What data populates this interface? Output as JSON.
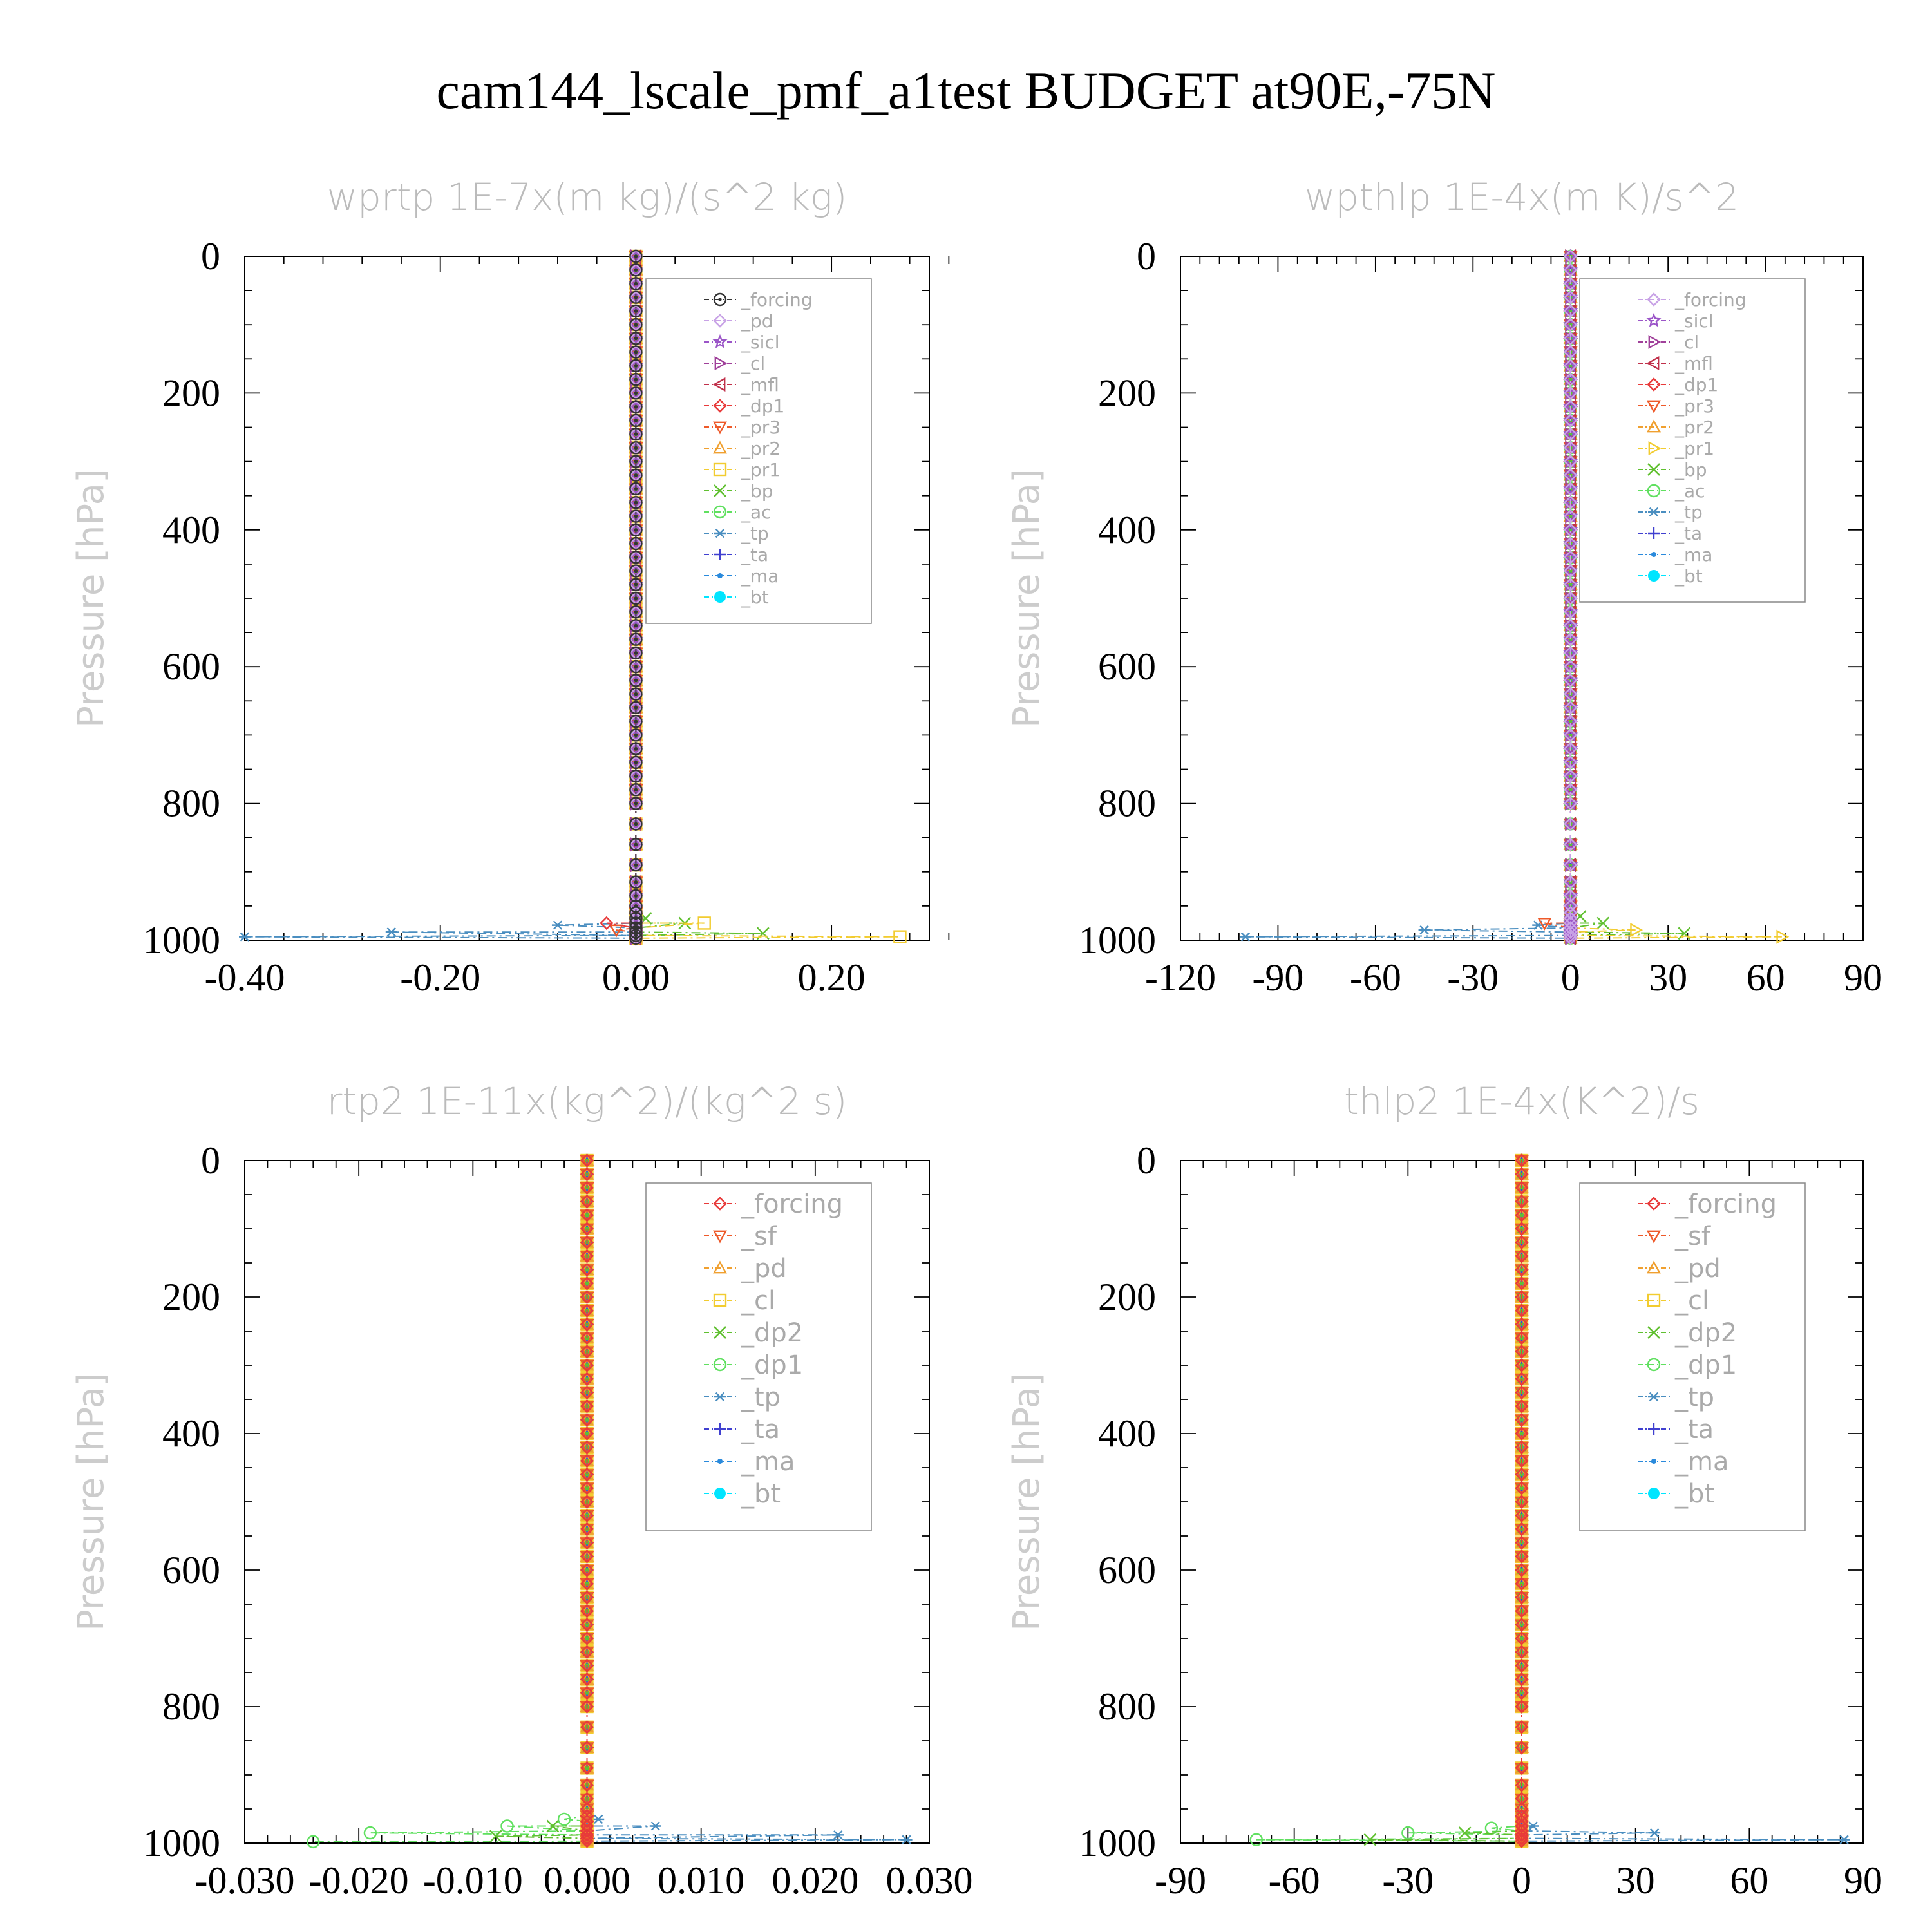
{
  "page_title": "cam144_lscale_pmf_a1test  BUDGET at90E,-75N",
  "colors": {
    "black": "#333333",
    "lavender": "#c8a2e6",
    "purple": "#9b55c8",
    "magenta": "#a0409a",
    "crimson": "#c0304a",
    "red": "#e83a3a",
    "orange_red": "#ee5a2a",
    "orange": "#f0a030",
    "yellow": "#f2cc30",
    "green": "#60c030",
    "light_green": "#60e060",
    "steel": "#4a8ec0",
    "blue": "#4040d0",
    "sky": "#2a8adc",
    "cyan": "#00e5ff"
  },
  "chart_data": [
    {
      "type": "line",
      "title": "wprtp   1E-7x(m kg)/(s^2 kg)",
      "ylabel": "Pressure [hPa]",
      "xlim": [
        -0.4,
        0.3
      ],
      "ylim": [
        1000,
        0
      ],
      "xticks": [
        -0.4,
        -0.2,
        0.0,
        0.2
      ],
      "xtick_labels": [
        "-0.40",
        "-0.20",
        "0.00",
        "0.20"
      ],
      "yticks": [
        0,
        200,
        400,
        600,
        800,
        1000
      ],
      "ytick_labels": [
        "0",
        "200",
        "400",
        "600",
        "800",
        "1000"
      ],
      "legend_position": "top-right",
      "series": [
        {
          "name": "_forcing",
          "color": "#333333",
          "marker": "circle-dot",
          "lowest": []
        },
        {
          "name": "_pd",
          "color": "#c8a2e6",
          "marker": "diamond",
          "lowest": []
        },
        {
          "name": "_sicl",
          "color": "#9b55c8",
          "marker": "star",
          "lowest": []
        },
        {
          "name": "_cl",
          "color": "#a0409a",
          "marker": "tri-right",
          "lowest": []
        },
        {
          "name": "_mfl",
          "color": "#c0304a",
          "marker": "tri-left",
          "lowest": []
        },
        {
          "name": "_dp1",
          "color": "#e83a3a",
          "marker": "diamond",
          "lowest": [
            [
              -0.03,
              975
            ],
            [
              0.0,
              995
            ]
          ]
        },
        {
          "name": "_pr3",
          "color": "#ee5a2a",
          "marker": "tri-down",
          "lowest": [
            [
              -0.02,
              985
            ],
            [
              0.0,
              998
            ]
          ]
        },
        {
          "name": "_pr2",
          "color": "#f0a030",
          "marker": "tri-up",
          "lowest": []
        },
        {
          "name": "_pr1",
          "color": "#f2cc30",
          "marker": "square",
          "lowest": [
            [
              0.07,
              975
            ],
            [
              0.27,
              995
            ]
          ]
        },
        {
          "name": "_bp",
          "color": "#60c030",
          "marker": "x",
          "lowest": [
            [
              0.01,
              968
            ],
            [
              0.05,
              975
            ],
            [
              0.13,
              990
            ]
          ]
        },
        {
          "name": "_ac",
          "color": "#60e060",
          "marker": "circle",
          "lowest": []
        },
        {
          "name": "_tp",
          "color": "#4a8ec0",
          "marker": "asterisk",
          "lowest": [
            [
              -0.08,
              978
            ],
            [
              -0.25,
              988
            ],
            [
              -0.4,
              995
            ]
          ]
        },
        {
          "name": "_ta",
          "color": "#4040d0",
          "marker": "plus",
          "lowest": []
        },
        {
          "name": "_ma",
          "color": "#2a8adc",
          "marker": "dot",
          "lowest": []
        },
        {
          "name": "_bt",
          "color": "#00e5ff",
          "marker": "filled-circle",
          "lowest": []
        }
      ]
    },
    {
      "type": "line",
      "title": "wpthlp   1E-4x(m K)/s^2",
      "ylabel": "Pressure [hPa]",
      "xlim": [
        -120,
        90
      ],
      "ylim": [
        1000,
        0
      ],
      "xticks": [
        -120,
        -90,
        -60,
        -30,
        0,
        30,
        60,
        90
      ],
      "xtick_labels": [
        "-120",
        "-90",
        "-60",
        "-30",
        "0",
        "30",
        "60",
        "90"
      ],
      "yticks": [
        0,
        200,
        400,
        600,
        800,
        1000
      ],
      "ytick_labels": [
        "0",
        "200",
        "400",
        "600",
        "800",
        "1000"
      ],
      "legend_position": "top-right",
      "series": [
        {
          "name": "_forcing",
          "color": "#c8a2e6",
          "marker": "diamond",
          "lowest": []
        },
        {
          "name": "_sicl",
          "color": "#9b55c8",
          "marker": "star",
          "lowest": []
        },
        {
          "name": "_cl",
          "color": "#a0409a",
          "marker": "tri-right",
          "lowest": []
        },
        {
          "name": "_mfl",
          "color": "#c0304a",
          "marker": "tri-left",
          "lowest": []
        },
        {
          "name": "_dp1",
          "color": "#e83a3a",
          "marker": "diamond",
          "lowest": []
        },
        {
          "name": "_pr3",
          "color": "#ee5a2a",
          "marker": "tri-down",
          "lowest": [
            [
              -8,
              975
            ],
            [
              0,
              995
            ]
          ]
        },
        {
          "name": "_pr2",
          "color": "#f0a030",
          "marker": "tri-up",
          "lowest": []
        },
        {
          "name": "_pr1",
          "color": "#f2cc30",
          "marker": "tri-right",
          "lowest": [
            [
              20,
              985
            ],
            [
              65,
              995
            ]
          ]
        },
        {
          "name": "_bp",
          "color": "#60c030",
          "marker": "x",
          "lowest": [
            [
              3,
              965
            ],
            [
              10,
              975
            ],
            [
              35,
              990
            ]
          ]
        },
        {
          "name": "_ac",
          "color": "#60e060",
          "marker": "circle",
          "lowest": []
        },
        {
          "name": "_tp",
          "color": "#4a8ec0",
          "marker": "asterisk",
          "lowest": [
            [
              -10,
              978
            ],
            [
              -45,
              985
            ],
            [
              -100,
              995
            ]
          ]
        },
        {
          "name": "_ta",
          "color": "#4040d0",
          "marker": "plus",
          "lowest": []
        },
        {
          "name": "_ma",
          "color": "#2a8adc",
          "marker": "dot",
          "lowest": []
        },
        {
          "name": "_bt",
          "color": "#00e5ff",
          "marker": "filled-circle",
          "lowest": []
        }
      ]
    },
    {
      "type": "line",
      "title": "rtp2   1E-11x(kg^2)/(kg^2 s)",
      "ylabel": "Pressure [hPa]",
      "xlim": [
        -0.03,
        0.03
      ],
      "ylim": [
        1000,
        0
      ],
      "xticks": [
        -0.03,
        -0.02,
        -0.01,
        0.0,
        0.01,
        0.02,
        0.03
      ],
      "xtick_labels": [
        "-0.030",
        "-0.020",
        "-0.010",
        "0.000",
        "0.010",
        "0.020",
        "0.030"
      ],
      "yticks": [
        0,
        200,
        400,
        600,
        800,
        1000
      ],
      "ytick_labels": [
        "0",
        "200",
        "400",
        "600",
        "800",
        "1000"
      ],
      "legend_position": "top-right",
      "series": [
        {
          "name": "_forcing",
          "color": "#e83a3a",
          "marker": "diamond",
          "lowest": []
        },
        {
          "name": "_sf",
          "color": "#ee5a2a",
          "marker": "tri-down",
          "lowest": []
        },
        {
          "name": "_pd",
          "color": "#f0a030",
          "marker": "tri-up",
          "lowest": []
        },
        {
          "name": "_cl",
          "color": "#f2cc30",
          "marker": "square",
          "lowest": []
        },
        {
          "name": "_dp2",
          "color": "#60c030",
          "marker": "x",
          "lowest": [
            [
              -0.003,
              975
            ],
            [
              -0.008,
              990
            ]
          ]
        },
        {
          "name": "_dp1",
          "color": "#60e060",
          "marker": "circle",
          "lowest": [
            [
              -0.002,
              965
            ],
            [
              -0.007,
              975
            ],
            [
              -0.019,
              985
            ],
            [
              -0.024,
              998
            ]
          ]
        },
        {
          "name": "_tp",
          "color": "#4a8ec0",
          "marker": "asterisk",
          "lowest": [
            [
              0.001,
              965
            ],
            [
              0.006,
              975
            ],
            [
              0.022,
              988
            ],
            [
              0.028,
              995
            ]
          ]
        },
        {
          "name": "_ta",
          "color": "#4040d0",
          "marker": "plus",
          "lowest": []
        },
        {
          "name": "_ma",
          "color": "#2a8adc",
          "marker": "dot",
          "lowest": []
        },
        {
          "name": "_bt",
          "color": "#00e5ff",
          "marker": "filled-circle",
          "lowest": []
        }
      ]
    },
    {
      "type": "line",
      "title": "thlp2   1E-4x(K^2)/s",
      "ylabel": "Pressure [hPa]",
      "xlim": [
        -90,
        90
      ],
      "ylim": [
        1000,
        0
      ],
      "xticks": [
        -90,
        -60,
        -30,
        0,
        30,
        60,
        90
      ],
      "xtick_labels": [
        "-90",
        "-60",
        "-30",
        "0",
        "30",
        "60",
        "90"
      ],
      "yticks": [
        0,
        200,
        400,
        600,
        800,
        1000
      ],
      "ytick_labels": [
        "0",
        "200",
        "400",
        "600",
        "800",
        "1000"
      ],
      "legend_position": "top-right",
      "series": [
        {
          "name": "_forcing",
          "color": "#e83a3a",
          "marker": "diamond",
          "lowest": []
        },
        {
          "name": "_sf",
          "color": "#ee5a2a",
          "marker": "tri-down",
          "lowest": []
        },
        {
          "name": "_pd",
          "color": "#f0a030",
          "marker": "tri-up",
          "lowest": []
        },
        {
          "name": "_cl",
          "color": "#f2cc30",
          "marker": "square",
          "lowest": []
        },
        {
          "name": "_dp2",
          "color": "#60c030",
          "marker": "x",
          "lowest": [
            [
              -15,
              985
            ],
            [
              -40,
              995
            ]
          ]
        },
        {
          "name": "_dp1",
          "color": "#60e060",
          "marker": "circle",
          "lowest": [
            [
              -8,
              978
            ],
            [
              -30,
              985
            ],
            [
              -70,
              995
            ]
          ]
        },
        {
          "name": "_tp",
          "color": "#4a8ec0",
          "marker": "asterisk",
          "lowest": [
            [
              3,
              975
            ],
            [
              35,
              985
            ],
            [
              85,
              995
            ]
          ]
        },
        {
          "name": "_ta",
          "color": "#4040d0",
          "marker": "plus",
          "lowest": []
        },
        {
          "name": "_ma",
          "color": "#2a8adc",
          "marker": "dot",
          "lowest": []
        },
        {
          "name": "_bt",
          "color": "#00e5ff",
          "marker": "filled-circle",
          "lowest": []
        }
      ]
    }
  ]
}
